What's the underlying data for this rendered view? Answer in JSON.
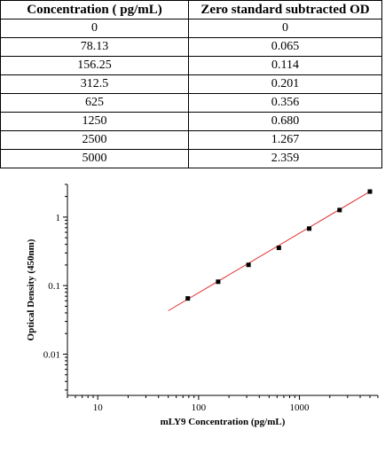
{
  "table": {
    "headers": [
      "Concentration ( pg/mL)",
      "Zero standard subtracted OD"
    ],
    "rows": [
      [
        "0",
        "0"
      ],
      [
        "78.13",
        "0.065"
      ],
      [
        "156.25",
        "0.114"
      ],
      [
        "312.5",
        "0.201"
      ],
      [
        "625",
        "0.356"
      ],
      [
        "1250",
        "0.680"
      ],
      [
        "2500",
        "1.267"
      ],
      [
        "5000",
        "2.359"
      ]
    ]
  },
  "chart_data": {
    "type": "scatter",
    "xlabel": "mLY9 Concentration (pg/mL)",
    "ylabel": "Optical Density (450nm)",
    "x_scale": "log",
    "y_scale": "log",
    "xlim": [
      5,
      6000
    ],
    "ylim": [
      0.0025,
      3
    ],
    "x_ticks": [
      {
        "value": 10,
        "label": "10"
      },
      {
        "value": 100,
        "label": "100"
      },
      {
        "value": 1000,
        "label": "1000"
      }
    ],
    "y_ticks": [
      {
        "value": 0.01,
        "label": "0.01"
      },
      {
        "value": 0.1,
        "label": "0.1"
      },
      {
        "value": 1,
        "label": "1"
      }
    ],
    "points": [
      {
        "x": 78.13,
        "y": 0.065
      },
      {
        "x": 156.25,
        "y": 0.114
      },
      {
        "x": 312.5,
        "y": 0.201
      },
      {
        "x": 625,
        "y": 0.356
      },
      {
        "x": 1250,
        "y": 0.68
      },
      {
        "x": 2500,
        "y": 1.267
      },
      {
        "x": 5000,
        "y": 2.359
      }
    ],
    "fit_line": {
      "x": [
        50,
        5000
      ],
      "y": [
        0.043,
        2.359
      ],
      "color": "#e03030"
    },
    "marker_color": "#000000",
    "grid": false,
    "legend": "none"
  }
}
